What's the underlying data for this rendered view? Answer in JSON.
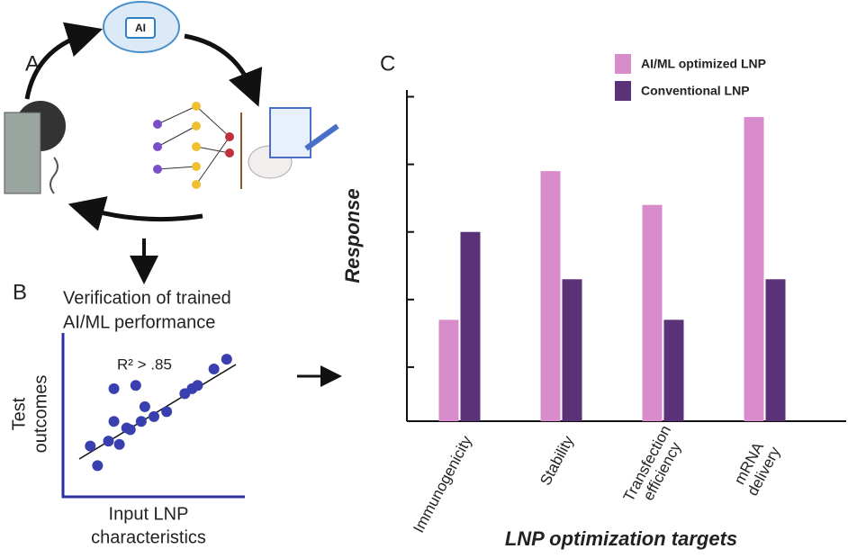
{
  "panels": [
    "A",
    "B",
    "C"
  ],
  "diagram": {
    "ai_label": "AI"
  },
  "chart_data": [
    {
      "type": "bar",
      "xlabel": "LNP optimization targets",
      "ylabel": "Response",
      "categories": [
        "Immunogenicity",
        "Stability",
        "Transfection efficiency",
        "mRNA delivery"
      ],
      "series": [
        {
          "name": "AI/ML optimized LNP",
          "color": "#d98ccc",
          "values": [
            1.7,
            3.9,
            3.4,
            4.7
          ]
        },
        {
          "name": "Conventional LNP",
          "color": "#5b3278",
          "values": [
            3.0,
            2.3,
            1.7,
            2.3
          ]
        }
      ],
      "ylim": [
        0.2,
        5.1
      ],
      "yticks": [
        1,
        2,
        3,
        4,
        5
      ],
      "tick_labels": false,
      "legend": "top"
    },
    {
      "type": "scatter",
      "title": [
        "Verification of trained",
        "AI/ML performance"
      ],
      "xlabel": [
        "Input LNP",
        "characteristics"
      ],
      "ylabel": [
        "Test",
        "outcomes"
      ],
      "annotation": "R² > .85",
      "color": "#3a3fb0",
      "x": [
        2.8,
        4.0,
        1.5,
        1.9,
        2.5,
        3.1,
        3.5,
        2.8,
        3.7,
        4.3,
        4.5,
        5.0,
        5.7,
        6.7,
        7.1,
        7.4,
        8.3,
        9.0
      ],
      "y": [
        6.6,
        6.8,
        3.1,
        1.9,
        3.4,
        3.2,
        4.2,
        4.6,
        4.1,
        4.6,
        5.5,
        4.9,
        5.2,
        6.3,
        6.6,
        6.8,
        7.8,
        8.4
      ],
      "xlim": [
        0,
        10
      ],
      "ylim": [
        0,
        10
      ]
    }
  ]
}
